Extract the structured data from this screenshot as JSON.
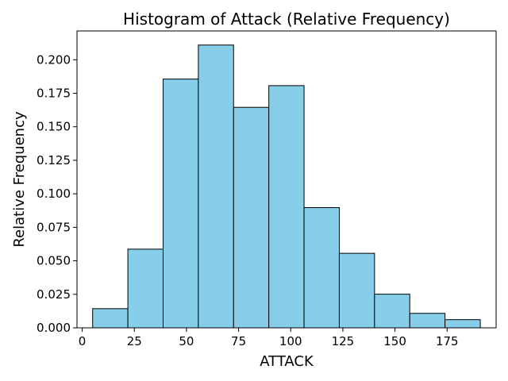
{
  "chart_data": {
    "type": "bar",
    "title": "Histogram of Attack (Relative Frequency)",
    "xlabel": "ATTACK",
    "ylabel": "Relative Frequency",
    "bin_edges": [
      5.0,
      21.9,
      38.8,
      55.7,
      72.6,
      89.5,
      106.4,
      123.3,
      140.2,
      157.1,
      174.0,
      190.9
    ],
    "values": [
      0.0143,
      0.0587,
      0.1856,
      0.211,
      0.1645,
      0.1807,
      0.0897,
      0.0556,
      0.0251,
      0.0108,
      0.0061
    ],
    "xlim": [
      -2.5,
      198.5
    ],
    "ylim": [
      0,
      0.2215
    ],
    "xticks": [
      0,
      25,
      50,
      75,
      100,
      125,
      150,
      175
    ],
    "xtick_labels": [
      "0",
      "25",
      "50",
      "75",
      "100",
      "125",
      "150",
      "175"
    ],
    "yticks": [
      0,
      0.025,
      0.05,
      0.075,
      0.1,
      0.125,
      0.15,
      0.175,
      0.2
    ],
    "ytick_labels": [
      "0.000",
      "0.025",
      "0.050",
      "0.075",
      "0.100",
      "0.125",
      "0.150",
      "0.175",
      "0.200"
    ],
    "grid": false,
    "colors": {
      "bar_fill": "#87CEEB",
      "bar_edge": "#000000"
    }
  }
}
